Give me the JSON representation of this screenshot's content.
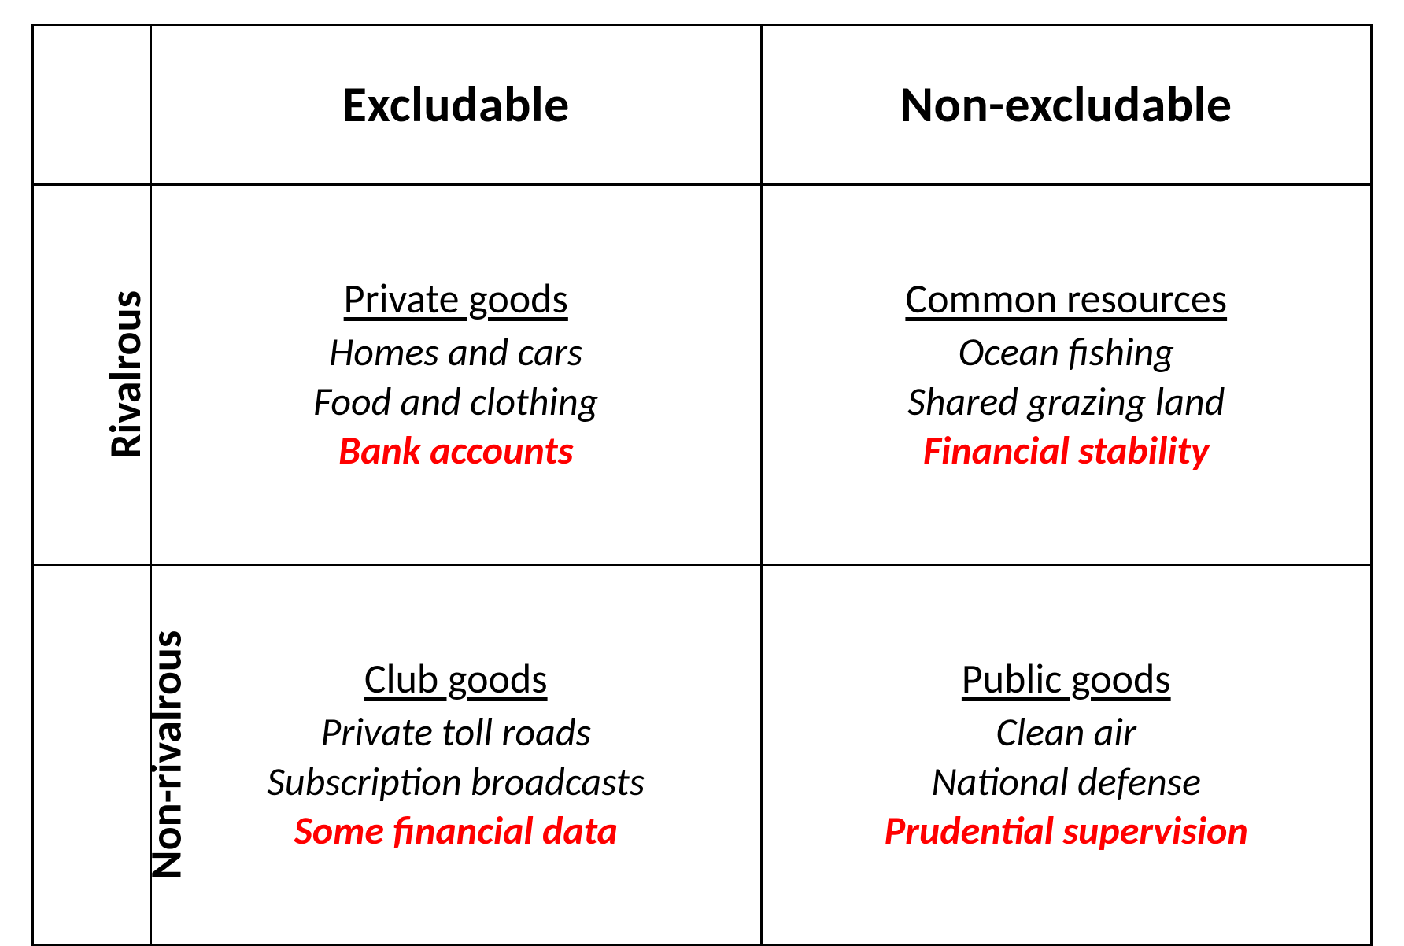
{
  "table": {
    "type": "matrix-2x2",
    "border_color": "#000000",
    "background_color": "#ffffff",
    "highlight_color": "#ff0000",
    "text_color": "#000000",
    "font_family": "Calibri",
    "header_fontsize_pt": 48,
    "row_header_fontsize_pt": 42,
    "title_fontsize_pt": 39,
    "body_fontsize_pt": 38,
    "columns": [
      "Excludable",
      "Non-excludable"
    ],
    "rows": [
      "Rivalrous",
      "Non-rivalrous"
    ],
    "cells": {
      "r0c0": {
        "title": "Private goods",
        "lines": [
          "Homes and cars",
          "Food and clothing"
        ],
        "highlight": "Bank accounts"
      },
      "r0c1": {
        "title": "Common resources",
        "lines": [
          "Ocean fishing",
          "Shared grazing land"
        ],
        "highlight": "Financial stability"
      },
      "r1c0": {
        "title": "Club goods",
        "lines": [
          "Private toll roads",
          "Subscription broadcasts"
        ],
        "highlight": "Some financial data"
      },
      "r1c1": {
        "title": "Public goods",
        "lines": [
          "Clean air",
          "National defense"
        ],
        "highlight": "Prudential supervision"
      }
    }
  }
}
